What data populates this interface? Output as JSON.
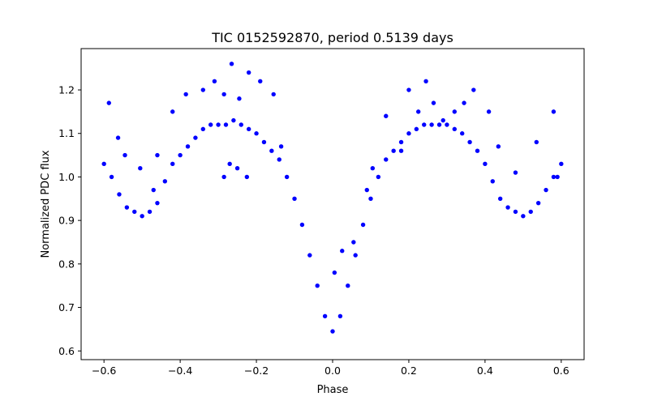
{
  "chart_data": {
    "type": "scatter",
    "title": "TIC 0152592870, period 0.5139 days",
    "xlabel": "Phase",
    "ylabel": "Normalized PDC flux",
    "xlim": [
      -0.66,
      0.66
    ],
    "ylim": [
      0.58,
      1.295
    ],
    "x_ticks": [
      -0.6,
      -0.4,
      -0.2,
      0.0,
      0.2,
      0.4,
      0.6
    ],
    "x_tick_labels": [
      "−0.6",
      "−0.4",
      "−0.2",
      "0.0",
      "0.2",
      "0.4",
      "0.6"
    ],
    "y_ticks": [
      0.6,
      0.7,
      0.8,
      0.9,
      1.0,
      1.1,
      1.2
    ],
    "y_tick_labels": [
      "0.6",
      "0.7",
      "0.8",
      "0.9",
      "1.0",
      "1.1",
      "1.2"
    ],
    "grid": false,
    "legend": "none",
    "marker_color": "#0000ff",
    "series": [
      {
        "x": [
          -0.6,
          -0.58,
          -0.56,
          -0.54,
          -0.52,
          -0.5,
          -0.48,
          -0.46,
          -0.44,
          -0.42,
          -0.4,
          -0.38,
          -0.36,
          -0.34,
          -0.32,
          -0.3,
          -0.28,
          -0.26,
          -0.24,
          -0.22,
          -0.2,
          -0.18,
          -0.16,
          -0.14,
          -0.12,
          -0.1,
          -0.08,
          -0.06,
          -0.04,
          -0.02,
          0.0,
          0.02,
          0.04,
          0.06,
          0.08,
          0.1,
          0.12,
          0.14,
          0.16,
          0.18,
          0.2,
          0.22,
          0.24,
          0.26,
          0.28,
          0.3,
          0.32,
          0.34,
          0.36,
          0.38,
          0.4,
          0.42,
          0.44,
          0.46,
          0.48,
          0.5,
          0.52,
          0.54,
          0.56,
          0.58,
          0.6
        ],
        "y": [
          1.03,
          1.0,
          0.96,
          0.93,
          0.92,
          0.91,
          0.92,
          0.94,
          0.99,
          1.03,
          1.05,
          1.07,
          1.09,
          1.11,
          1.12,
          1.12,
          1.12,
          1.13,
          1.12,
          1.11,
          1.1,
          1.08,
          1.06,
          1.04,
          1.0,
          0.95,
          0.89,
          0.82,
          0.75,
          0.68,
          0.645,
          0.68,
          0.75,
          0.82,
          0.89,
          0.95,
          1.0,
          1.04,
          1.06,
          1.08,
          1.1,
          1.11,
          1.12,
          1.12,
          1.12,
          1.12,
          1.11,
          1.1,
          1.08,
          1.06,
          1.03,
          0.99,
          0.95,
          0.93,
          0.92,
          0.91,
          0.92,
          0.94,
          0.97,
          1.0,
          1.03
        ]
      },
      {
        "x": [
          -0.587,
          -0.563,
          -0.545,
          -0.505,
          -0.46,
          -0.42,
          -0.385,
          -0.34,
          -0.31,
          -0.285,
          -0.265,
          -0.245,
          -0.22,
          -0.19,
          -0.155,
          -0.135,
          -0.27,
          -0.25,
          -0.225,
          -0.285,
          -0.47,
          0.005,
          0.025,
          0.055,
          0.09,
          0.105,
          0.14,
          0.18,
          0.2,
          0.225,
          0.245,
          0.265,
          0.29,
          0.32,
          0.345,
          0.37,
          0.41,
          0.435,
          0.48,
          0.535,
          0.58,
          0.59
        ],
        "y": [
          1.17,
          1.09,
          1.05,
          1.02,
          1.05,
          1.15,
          1.19,
          1.2,
          1.22,
          1.19,
          1.26,
          1.18,
          1.24,
          1.22,
          1.19,
          1.07,
          1.03,
          1.02,
          1.0,
          1.0,
          0.97,
          0.78,
          0.83,
          0.85,
          0.97,
          1.02,
          1.14,
          1.06,
          1.2,
          1.15,
          1.22,
          1.17,
          1.13,
          1.15,
          1.17,
          1.2,
          1.15,
          1.07,
          1.01,
          1.08,
          1.15,
          1.0
        ]
      }
    ]
  }
}
